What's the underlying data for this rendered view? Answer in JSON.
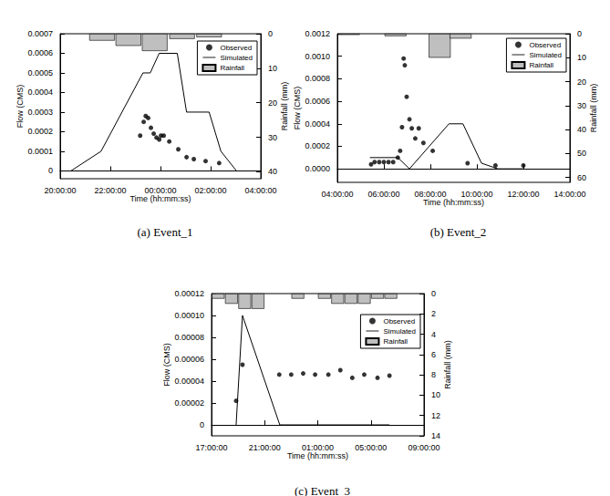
{
  "chart_data": [
    {
      "type": "combo",
      "title": "(a) Event_1",
      "x_label": "Time (hh:mm:ss)",
      "y_label": "Flow (CMS)",
      "y2_label": "Rainfall (mm)",
      "xlim": [
        20,
        28
      ],
      "xticks": [
        {
          "value": 20,
          "label": "20:00:00"
        },
        {
          "value": 22,
          "label": "22:00:00"
        },
        {
          "value": 24,
          "label": "00:00:00"
        },
        {
          "value": 26,
          "label": "02:00:00"
        },
        {
          "value": 28,
          "label": "04:00:00"
        }
      ],
      "ylim": [
        -4e-05,
        0.0007
      ],
      "yticks": [
        0,
        0.0001,
        0.0002,
        0.0003,
        0.0004,
        0.0005,
        0.0006,
        0.0007
      ],
      "y2lim": [
        42,
        0
      ],
      "y2ticks": [
        0,
        10,
        20,
        30,
        40
      ],
      "grid": false,
      "legend": "upper right",
      "series": [
        {
          "name": "Observed",
          "type": "scatter",
          "color": "#000000",
          "marker": "circle",
          "x": [
            23.19,
            23.33,
            23.41,
            23.51,
            23.62,
            23.73,
            23.84,
            23.95,
            24.02,
            24.13,
            24.35,
            24.71,
            25.04,
            25.33,
            25.8,
            26.34
          ],
          "values": [
            0.00018,
            0.00025,
            0.00028,
            0.00027,
            0.00022,
            0.00019,
            0.00017,
            0.00016,
            0.00018,
            0.00018,
            0.00015,
            0.00011,
            7e-05,
            6e-05,
            5e-05,
            4e-05
          ]
        },
        {
          "name": "Simulated",
          "type": "line",
          "color": "#000000",
          "line_style": "solid",
          "x": [
            20.43,
            21.63,
            23.3,
            23.59,
            23.95,
            24.67,
            25.04,
            25.94,
            26.41,
            27.03
          ],
          "values": [
            0,
            0.0001,
            0.0005,
            0.0005,
            0.0006,
            0.0006,
            0.0003,
            0.0003,
            0.0001,
            0
          ]
        },
        {
          "name": "Rainfall",
          "type": "bar",
          "axis": "y2",
          "color": "#bfbfbf",
          "x": [
            21.67,
            22.72,
            23.77,
            24.86,
            25.94
          ],
          "values": [
            2,
            3.5,
            5,
            1.5,
            1
          ]
        }
      ]
    },
    {
      "type": "combo",
      "title": "(b) Event_2",
      "x_label": "Time (hh:mm:ss)",
      "y_label": "Flow (CMS)",
      "y2_label": "Rainfall (mm)",
      "xlim": [
        4,
        14
      ],
      "xticks": [
        {
          "value": 4,
          "label": "04:00:00"
        },
        {
          "value": 6,
          "label": "06:00:00"
        },
        {
          "value": 8,
          "label": "08:00:00"
        },
        {
          "value": 10,
          "label": "10:00:00"
        },
        {
          "value": 12,
          "label": "12:00:00"
        },
        {
          "value": 14,
          "label": "14:00:00"
        }
      ],
      "ylim": [
        -0.00012,
        0.0012
      ],
      "yticks": [
        {
          "value": 0,
          "label": "0.0000"
        },
        0.0002,
        0.0004,
        0.0006,
        0.0008,
        {
          "value": 0.001,
          "label": "0.0010"
        },
        0.0012
      ],
      "y2lim": [
        62,
        0
      ],
      "y2ticks": [
        0,
        10,
        20,
        30,
        40,
        50,
        60
      ],
      "grid": false,
      "legend": "upper right",
      "series": [
        {
          "name": "Observed",
          "type": "scatter",
          "color": "#000000",
          "marker": "circle",
          "x": [
            5.45,
            5.6,
            5.8,
            6.0,
            6.2,
            6.4,
            6.6,
            6.7,
            6.78,
            6.85,
            6.9,
            6.98,
            7.1,
            7.2,
            7.35,
            7.5,
            7.7,
            8.1,
            9.6,
            10.8,
            12.0
          ],
          "values": [
            4e-05,
            6e-05,
            6e-05,
            6e-05,
            6e-05,
            6e-05,
            0.0001,
            0.00016,
            0.00037,
            0.00098,
            0.00092,
            0.00064,
            0.00044,
            0.00036,
            0.00027,
            0.00036,
            0.00023,
            0.00016,
            5e-05,
            3e-05,
            3e-05
          ]
        },
        {
          "name": "Simulated",
          "type": "line",
          "color": "#000000",
          "line_style": "solid",
          "x": [
            5.4,
            6.6,
            7.1,
            8.8,
            9.4,
            10.2,
            10.9,
            12.0
          ],
          "values": [
            0.0001,
            0.0001,
            0,
            0.0004,
            0.0004,
            5e-05,
            0,
            0
          ]
        },
        {
          "name": "Rainfall",
          "type": "bar",
          "axis": "y2",
          "color": "#bfbfbf",
          "x": [
            4.5,
            6.5,
            8.4,
            9.3
          ],
          "values": [
            0.5,
            1,
            10,
            2
          ]
        }
      ]
    },
    {
      "type": "combo",
      "title": "(c) Event_3",
      "x_label": "Time (hh:mm:ss)",
      "y_label": "Flow (CMS)",
      "y2_label": "Rainfall (mm)",
      "xlim": [
        17,
        33
      ],
      "xticks": [
        {
          "value": 17,
          "label": "17:00:00"
        },
        {
          "value": 21,
          "label": "21:00:00"
        },
        {
          "value": 25,
          "label": "01:00:00"
        },
        {
          "value": 29,
          "label": "05:00:00"
        },
        {
          "value": 33,
          "label": "09:00:00"
        }
      ],
      "ylim": [
        -1e-05,
        0.00012
      ],
      "yticks": [
        0,
        2e-05,
        4e-05,
        6e-05,
        8e-05,
        {
          "value": 0.0001,
          "label": "0.00010"
        },
        0.00012
      ],
      "y2lim": [
        14,
        0
      ],
      "y2ticks": [
        0,
        2,
        4,
        6,
        8,
        10,
        12,
        14
      ],
      "grid": false,
      "legend": "upper right",
      "series": [
        {
          "name": "Observed",
          "type": "scatter",
          "color": "#000000",
          "marker": "circle",
          "x": [
            18.85,
            19.33,
            22.1,
            23.0,
            23.9,
            24.8,
            25.8,
            26.7,
            27.6,
            28.5,
            29.5,
            30.4
          ],
          "values": [
            2.2e-05,
            5.5e-05,
            4.6e-05,
            4.6e-05,
            4.7e-05,
            4.6e-05,
            4.6e-05,
            5e-05,
            4.3e-05,
            4.6e-05,
            4.3e-05,
            4.5e-05
          ]
        },
        {
          "name": "Simulated",
          "type": "line",
          "color": "#000000",
          "line_style": "solid",
          "x": [
            18.85,
            19.33,
            22.14,
            30.4
          ],
          "values": [
            0,
            0.0001,
            0,
            0
          ]
        },
        {
          "name": "Rainfall",
          "type": "bar",
          "axis": "y2",
          "color": "#bfbfbf",
          "x": [
            17.5,
            18.5,
            19.5,
            20.5,
            23.5,
            25.5,
            26.5,
            27.5,
            28.5,
            29.5,
            30.5
          ],
          "values": [
            0.5,
            1,
            1.5,
            1.5,
            0.5,
            0.5,
            1,
            1,
            1,
            0.5,
            0.5
          ]
        }
      ]
    }
  ]
}
